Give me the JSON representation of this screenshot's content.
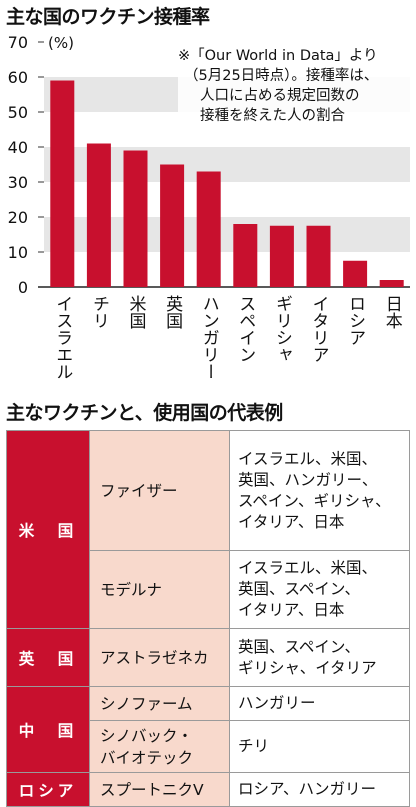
{
  "title": "主な国のワクチン接種率",
  "note_lines": [
    "※「Our World in Data」より",
    "（5月25日時点）。接種率は、",
    "人口に占める規定回数の",
    "接種を終えた人の割合"
  ],
  "colors": {
    "bar": "#c8102e",
    "band": "#e6e6e6"
  },
  "chart_data": {
    "type": "bar",
    "title": "主な国のワクチン接種率",
    "ylabel": "(%)",
    "ylim": [
      0,
      70
    ],
    "yticks": [
      0,
      10,
      20,
      30,
      40,
      50,
      60,
      70
    ],
    "grid": "horizontal bands",
    "categories": [
      "イスラエル",
      "チリ",
      "米国",
      "英国",
      "ハンガリー",
      "スペイン",
      "ギリシャ",
      "イタリア",
      "ロシア",
      "日本"
    ],
    "values": [
      59,
      41,
      39,
      35,
      33,
      18,
      17.5,
      17.5,
      7.5,
      2
    ]
  },
  "table_title": "主なワクチンと、使用国の代表例",
  "table": {
    "groups": [
      {
        "country": "米　国",
        "rows": [
          {
            "vaccine": [
              "ファイザー"
            ],
            "users": [
              "イスラエル、米国、",
              "英国、ハンガリー、",
              "スペイン、ギリシャ、",
              "イタリア、日本"
            ]
          },
          {
            "vaccine": [
              "モデルナ"
            ],
            "users": [
              "イスラエル、米国、",
              "英国、スペイン、",
              "イタリア、日本"
            ]
          }
        ]
      },
      {
        "country": "英　国",
        "rows": [
          {
            "vaccine": [
              "アストラゼネカ"
            ],
            "users": [
              "英国、スペイン、",
              "ギリシャ、イタリア"
            ]
          }
        ]
      },
      {
        "country": "中　国",
        "rows": [
          {
            "vaccine": [
              "シノファーム"
            ],
            "users": [
              "ハンガリー"
            ]
          },
          {
            "vaccine": [
              "シノバック・",
              "バイオテック"
            ],
            "users": [
              "チリ"
            ]
          }
        ]
      },
      {
        "country": "ロシア",
        "rows": [
          {
            "vaccine": [
              "スプートニクV"
            ],
            "users": [
              "ロシア、ハンガリー"
            ]
          }
        ]
      }
    ]
  }
}
